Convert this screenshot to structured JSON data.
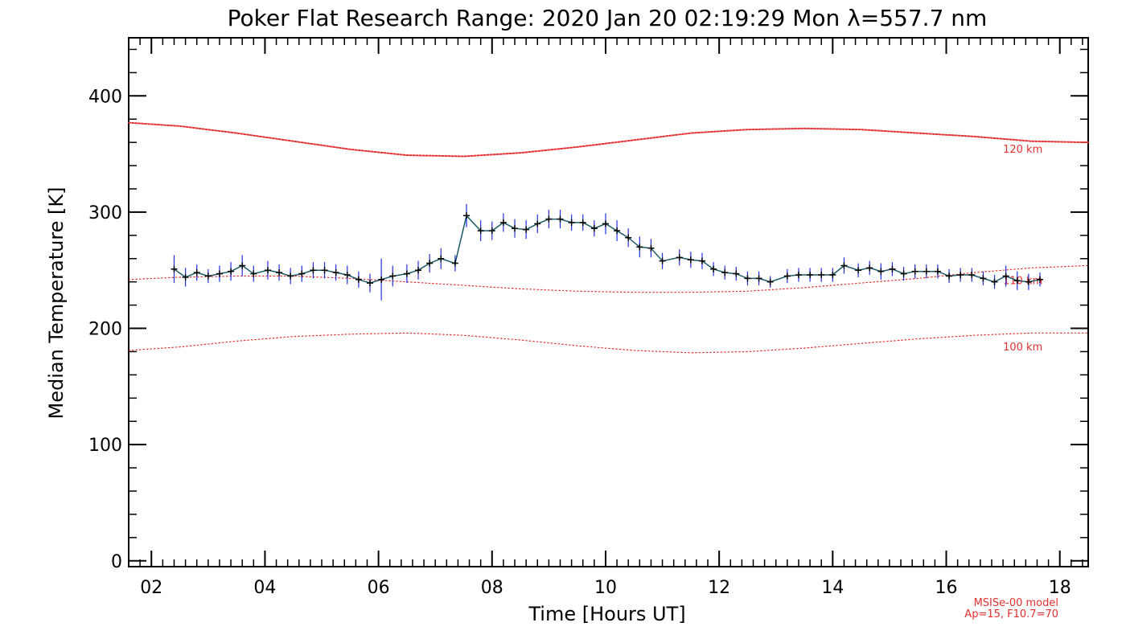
{
  "chart_data": {
    "type": "line",
    "title": "Poker Flat Research Range: 2020 Jan 20 02:19:29 Mon λ=557.7 nm",
    "xlabel": "Time [Hours UT]",
    "ylabel": "Median Temperature [K]",
    "xlim": [
      1.6,
      18.5
    ],
    "ylim": [
      -5,
      450
    ],
    "x_ticks": [
      2,
      4,
      6,
      8,
      10,
      12,
      14,
      16,
      18
    ],
    "x_tick_labels": [
      "02",
      "04",
      "06",
      "08",
      "10",
      "12",
      "14",
      "16",
      "18"
    ],
    "y_ticks": [
      0,
      100,
      200,
      300,
      400
    ],
    "y_tick_labels": [
      "0",
      "100",
      "200",
      "300",
      "400"
    ],
    "grid": false,
    "colors": {
      "data_line": "#1a5c6a",
      "error_bars": "#2030e0",
      "markers": "#000000",
      "model_curves": "#e53030"
    },
    "series": [
      {
        "role": "measurement",
        "x": [
          2.4,
          2.6,
          2.8,
          3.0,
          3.2,
          3.4,
          3.6,
          3.8,
          4.05,
          4.25,
          4.45,
          4.65,
          4.85,
          5.05,
          5.25,
          5.45,
          5.65,
          5.85,
          6.05,
          6.25,
          6.5,
          6.7,
          6.9,
          7.1,
          7.35,
          7.55,
          7.8,
          8.0,
          8.2,
          8.4,
          8.6,
          8.8,
          9.0,
          9.2,
          9.4,
          9.6,
          9.8,
          10.0,
          10.2,
          10.4,
          10.6,
          10.8,
          11.0,
          11.3,
          11.5,
          11.7,
          11.9,
          12.1,
          12.3,
          12.5,
          12.7,
          12.9,
          13.2,
          13.4,
          13.6,
          13.8,
          14.0,
          14.2,
          14.45,
          14.65,
          14.85,
          15.05,
          15.25,
          15.45,
          15.65,
          15.85,
          16.05,
          16.25,
          16.45,
          16.65,
          16.85,
          17.05,
          17.25,
          17.45,
          17.65
        ],
        "y": [
          251,
          244,
          248,
          245,
          247,
          249,
          254,
          247,
          250,
          248,
          245,
          247,
          250,
          250,
          248,
          246,
          242,
          239,
          242,
          245,
          247,
          250,
          256,
          260,
          256,
          297,
          284,
          284,
          291,
          286,
          285,
          290,
          294,
          294,
          291,
          291,
          286,
          290,
          284,
          278,
          270,
          269,
          258,
          261,
          259,
          258,
          251,
          248,
          247,
          243,
          243,
          240,
          245,
          246,
          246,
          246,
          246,
          254,
          250,
          252,
          249,
          251,
          247,
          249,
          249,
          249,
          245,
          246,
          246,
          243,
          240,
          245,
          241,
          240,
          242
        ],
        "y_err": [
          12,
          8,
          7,
          6,
          7,
          8,
          9,
          7,
          8,
          7,
          7,
          7,
          7,
          7,
          7,
          8,
          7,
          8,
          18,
          9,
          8,
          8,
          8,
          9,
          7,
          10,
          9,
          8,
          8,
          8,
          8,
          8,
          8,
          8,
          7,
          7,
          7,
          9,
          9,
          8,
          9,
          8,
          7,
          7,
          7,
          7,
          6,
          6,
          6,
          6,
          6,
          5,
          6,
          6,
          6,
          6,
          6,
          7,
          6,
          6,
          7,
          6,
          6,
          6,
          6,
          6,
          6,
          6,
          6,
          6,
          6,
          9,
          8,
          7,
          6
        ]
      },
      {
        "name": "120 km",
        "role": "model",
        "x": [
          1.6,
          2.5,
          3.5,
          4.5,
          5.5,
          6.5,
          7.5,
          8.5,
          9.5,
          10.5,
          11.5,
          12.5,
          13.5,
          14.5,
          15.5,
          16.5,
          17.5,
          18.5
        ],
        "y": [
          377,
          374,
          368,
          361,
          354,
          349,
          348,
          351,
          356,
          362,
          368,
          371,
          372,
          371,
          368,
          365,
          361,
          360
        ]
      },
      {
        "name": "110 km",
        "role": "model",
        "x": [
          1.6,
          2.5,
          3.5,
          4.5,
          5.5,
          6.5,
          7.5,
          8.5,
          9.5,
          10.5,
          11.5,
          12.5,
          13.5,
          14.5,
          15.5,
          16.5,
          17.5,
          18.5
        ],
        "y": [
          242,
          244,
          245,
          245,
          243,
          240,
          237,
          234,
          232,
          231,
          231,
          232,
          235,
          239,
          243,
          248,
          252,
          254
        ]
      },
      {
        "name": "100 km",
        "role": "model",
        "x": [
          1.6,
          2.5,
          3.5,
          4.5,
          5.5,
          6.5,
          7.5,
          8.5,
          9.5,
          10.5,
          11.5,
          12.5,
          13.5,
          14.5,
          15.5,
          16.5,
          17.5,
          18.5
        ],
        "y": [
          181,
          184,
          189,
          193,
          195,
          196,
          194,
          190,
          185,
          181,
          179,
          180,
          183,
          187,
          191,
          194,
          196,
          196
        ]
      }
    ],
    "curve_labels": [
      {
        "text": "120 km",
        "x": 17.0,
        "y": 351
      },
      {
        "text": "110 km",
        "x": 17.0,
        "y": 238
      },
      {
        "text": "100 km",
        "x": 17.0,
        "y": 181
      }
    ],
    "annotation_lines": [
      "MSISe-00 model",
      "Ap=15, F10.7=70"
    ]
  }
}
